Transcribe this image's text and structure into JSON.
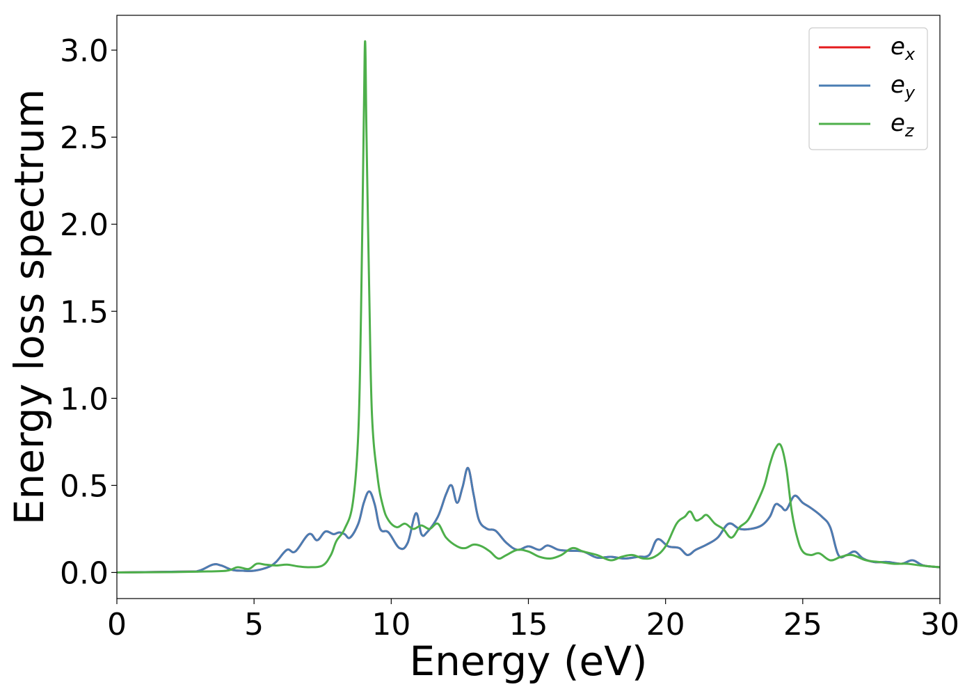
{
  "chart_data": {
    "type": "line",
    "title": "",
    "xlabel": "Energy (eV)",
    "ylabel": "Energy loss spectrum",
    "xlim": [
      0,
      30
    ],
    "ylim": [
      -0.15,
      3.2
    ],
    "xticks": [
      0,
      5,
      10,
      15,
      20,
      25,
      30
    ],
    "xtick_labels": [
      "0",
      "5",
      "10",
      "15",
      "20",
      "25",
      "30"
    ],
    "yticks": [
      0.0,
      0.5,
      1.0,
      1.5,
      2.0,
      2.5,
      3.0
    ],
    "ytick_labels": [
      "0.0",
      "0.5",
      "1.0",
      "1.5",
      "2.0",
      "2.5",
      "3.0"
    ],
    "grid": false,
    "legend_position": "top-right",
    "series": [
      {
        "name": "e",
        "subscript": "x",
        "color": "#e41a1c",
        "x": [
          0,
          2.5,
          3.0,
          3.5,
          3.8,
          4.2,
          4.6,
          5.0,
          5.5,
          5.8,
          6.2,
          6.5,
          7.0,
          7.3,
          7.6,
          7.9,
          8.1,
          8.3,
          8.5,
          8.8,
          9.0,
          9.2,
          9.4,
          9.6,
          9.9,
          10.3,
          10.6,
          10.9,
          11.1,
          11.3,
          11.7,
          12.0,
          12.2,
          12.4,
          12.6,
          12.8,
          13.0,
          13.2,
          13.5,
          13.8,
          14.2,
          14.6,
          15.0,
          15.4,
          15.7,
          16.1,
          16.5,
          17.0,
          17.5,
          18.0,
          18.5,
          19.0,
          19.4,
          19.7,
          20.1,
          20.5,
          20.8,
          21.1,
          21.5,
          21.9,
          22.3,
          22.7,
          23.1,
          23.5,
          23.8,
          24.0,
          24.2,
          24.4,
          24.7,
          25.0,
          25.3,
          25.7,
          26.0,
          26.3,
          26.6,
          26.9,
          27.2,
          27.6,
          28.1,
          28.6,
          29.0,
          29.4,
          30.0
        ],
        "y": [
          0.0,
          0.005,
          0.01,
          0.045,
          0.04,
          0.015,
          0.01,
          0.01,
          0.03,
          0.06,
          0.13,
          0.12,
          0.22,
          0.185,
          0.235,
          0.22,
          0.23,
          0.22,
          0.2,
          0.28,
          0.4,
          0.465,
          0.39,
          0.25,
          0.23,
          0.14,
          0.17,
          0.34,
          0.22,
          0.23,
          0.32,
          0.45,
          0.5,
          0.4,
          0.49,
          0.6,
          0.45,
          0.3,
          0.25,
          0.24,
          0.17,
          0.13,
          0.15,
          0.13,
          0.155,
          0.13,
          0.125,
          0.12,
          0.085,
          0.09,
          0.08,
          0.09,
          0.1,
          0.19,
          0.15,
          0.14,
          0.1,
          0.13,
          0.16,
          0.2,
          0.28,
          0.25,
          0.25,
          0.27,
          0.32,
          0.39,
          0.38,
          0.36,
          0.44,
          0.4,
          0.37,
          0.32,
          0.26,
          0.1,
          0.1,
          0.12,
          0.08,
          0.06,
          0.06,
          0.05,
          0.07,
          0.04,
          0.03
        ]
      },
      {
        "name": "e",
        "subscript": "y",
        "color": "#4a7db3",
        "x": [
          0,
          2.5,
          3.0,
          3.5,
          3.8,
          4.2,
          4.6,
          5.0,
          5.5,
          5.8,
          6.2,
          6.5,
          7.0,
          7.3,
          7.6,
          7.9,
          8.1,
          8.3,
          8.5,
          8.8,
          9.0,
          9.2,
          9.4,
          9.6,
          9.9,
          10.3,
          10.6,
          10.9,
          11.1,
          11.3,
          11.7,
          12.0,
          12.2,
          12.4,
          12.6,
          12.8,
          13.0,
          13.2,
          13.5,
          13.8,
          14.2,
          14.6,
          15.0,
          15.4,
          15.7,
          16.1,
          16.5,
          17.0,
          17.5,
          18.0,
          18.5,
          19.0,
          19.4,
          19.7,
          20.1,
          20.5,
          20.8,
          21.1,
          21.5,
          21.9,
          22.3,
          22.7,
          23.1,
          23.5,
          23.8,
          24.0,
          24.2,
          24.4,
          24.7,
          25.0,
          25.3,
          25.7,
          26.0,
          26.3,
          26.6,
          26.9,
          27.2,
          27.6,
          28.1,
          28.6,
          29.0,
          29.4,
          30.0
        ],
        "y": [
          0.0,
          0.005,
          0.01,
          0.045,
          0.04,
          0.015,
          0.01,
          0.01,
          0.03,
          0.06,
          0.13,
          0.12,
          0.22,
          0.185,
          0.235,
          0.22,
          0.23,
          0.22,
          0.2,
          0.28,
          0.4,
          0.465,
          0.39,
          0.25,
          0.23,
          0.14,
          0.17,
          0.34,
          0.22,
          0.23,
          0.32,
          0.45,
          0.5,
          0.4,
          0.49,
          0.6,
          0.45,
          0.3,
          0.25,
          0.24,
          0.17,
          0.13,
          0.15,
          0.13,
          0.155,
          0.13,
          0.125,
          0.12,
          0.085,
          0.09,
          0.08,
          0.09,
          0.1,
          0.19,
          0.15,
          0.14,
          0.1,
          0.13,
          0.16,
          0.2,
          0.28,
          0.25,
          0.25,
          0.27,
          0.32,
          0.39,
          0.38,
          0.36,
          0.44,
          0.4,
          0.37,
          0.32,
          0.26,
          0.1,
          0.1,
          0.12,
          0.08,
          0.06,
          0.06,
          0.05,
          0.07,
          0.04,
          0.03
        ]
      },
      {
        "name": "e",
        "subscript": "z",
        "color": "#4daf4a",
        "x": [
          0,
          2.0,
          3.0,
          4.0,
          4.4,
          4.8,
          5.1,
          5.4,
          5.8,
          6.2,
          6.6,
          7.0,
          7.5,
          7.8,
          8.0,
          8.3,
          8.6,
          8.8,
          8.9,
          9.0,
          9.05,
          9.1,
          9.2,
          9.3,
          9.5,
          9.7,
          9.9,
          10.2,
          10.5,
          10.8,
          11.1,
          11.4,
          11.7,
          12.0,
          12.4,
          12.7,
          13.0,
          13.3,
          13.6,
          13.9,
          14.2,
          14.6,
          15.0,
          15.4,
          15.8,
          16.2,
          16.6,
          17.0,
          17.5,
          18.0,
          18.4,
          18.8,
          19.2,
          19.6,
          20.0,
          20.4,
          20.7,
          20.9,
          21.1,
          21.3,
          21.5,
          21.8,
          22.1,
          22.4,
          22.7,
          23.0,
          23.3,
          23.6,
          23.8,
          24.0,
          24.2,
          24.4,
          24.6,
          24.8,
          25.0,
          25.3,
          25.6,
          26.0,
          26.4,
          26.8,
          27.3,
          27.8,
          28.3,
          28.8,
          29.3,
          30.0
        ],
        "y": [
          0.0,
          0.002,
          0.005,
          0.01,
          0.03,
          0.02,
          0.05,
          0.045,
          0.04,
          0.045,
          0.035,
          0.03,
          0.04,
          0.1,
          0.18,
          0.25,
          0.4,
          0.8,
          1.5,
          2.6,
          3.05,
          2.5,
          1.6,
          0.9,
          0.55,
          0.38,
          0.3,
          0.26,
          0.28,
          0.25,
          0.27,
          0.25,
          0.28,
          0.2,
          0.15,
          0.14,
          0.16,
          0.15,
          0.12,
          0.08,
          0.1,
          0.13,
          0.12,
          0.09,
          0.08,
          0.1,
          0.14,
          0.12,
          0.1,
          0.07,
          0.09,
          0.1,
          0.08,
          0.09,
          0.15,
          0.28,
          0.32,
          0.35,
          0.3,
          0.31,
          0.33,
          0.28,
          0.25,
          0.2,
          0.26,
          0.3,
          0.39,
          0.5,
          0.62,
          0.71,
          0.73,
          0.6,
          0.35,
          0.2,
          0.12,
          0.1,
          0.11,
          0.07,
          0.09,
          0.1,
          0.07,
          0.06,
          0.05,
          0.05,
          0.04,
          0.03
        ]
      }
    ]
  }
}
